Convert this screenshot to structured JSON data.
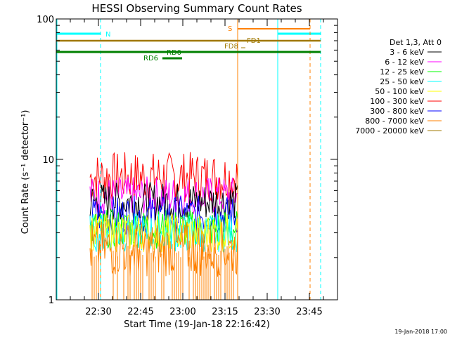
{
  "chart_data": {
    "type": "line",
    "title": "HESSI Observing Summary Count Rates",
    "xlabel": "Start Time (19-Jan-18 22:16:42)",
    "ylabel": "Count Rate (s⁻¹ detector⁻¹)",
    "y_scale": "log",
    "ylim": [
      1,
      100
    ],
    "x_tick_labels": [
      "22:30",
      "22:45",
      "23:00",
      "23:15",
      "23:30",
      "23:45"
    ],
    "y_tick_labels": [
      "1",
      "10",
      "100"
    ],
    "legend_title": "Det 1,3, Att 0",
    "legend_placement": "right",
    "series": [
      {
        "name": "3 - 6 keV",
        "color": "#000000",
        "approx_level": 5.0
      },
      {
        "name": "6 - 12 keV",
        "color": "#ff00ff",
        "approx_level": 5.5
      },
      {
        "name": "12 - 25 keV",
        "color": "#00ff00",
        "approx_level": 3.2
      },
      {
        "name": "25 - 50 keV",
        "color": "#00ffff",
        "approx_level": 3.0
      },
      {
        "name": "50 - 100 keV",
        "color": "#ffff00",
        "approx_level": 3.0
      },
      {
        "name": "100 - 300 keV",
        "color": "#ff0000",
        "approx_level": 7.5
      },
      {
        "name": "300 - 800 keV",
        "color": "#0000ff",
        "approx_level": 4.0
      },
      {
        "name": "800 - 7000 keV",
        "color": "#ff8000",
        "approx_level": 2.3
      },
      {
        "name": "7000 - 20000 keV",
        "color": "#a07800",
        "approx_level": 0
      }
    ],
    "flags": [
      {
        "label": "N",
        "color": "#00ffff"
      },
      {
        "label": "S",
        "color": "#ff8000"
      },
      {
        "label": "FD1",
        "color": "#a07800"
      },
      {
        "label": "FD8",
        "color": "#a07800"
      },
      {
        "label": "RD0",
        "color": "#008000"
      },
      {
        "label": "RD6",
        "color": "#008000"
      }
    ]
  },
  "footer": {
    "timestamp": "19-Jan-2018 17:00"
  }
}
